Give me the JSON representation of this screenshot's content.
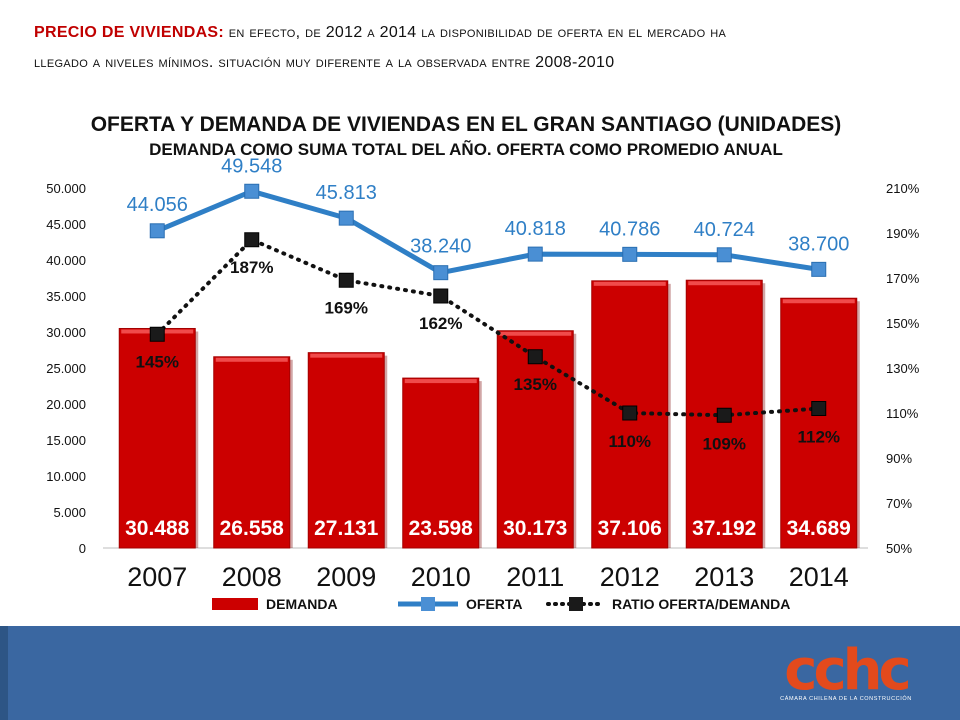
{
  "header": {
    "title_accent": "PRECIO DE VIVIENDAS:",
    "line1_rest": "en efecto, de 2012 a 2014 la disponibilidad de oferta en el mercado ha",
    "line2": "llegado a niveles mínimos. situación muy diferente a la observada entre 2008-2010"
  },
  "chart_data": {
    "type": "bar+line",
    "title": "OFERTA Y DEMANDA DE VIVIENDAS EN EL GRAN SANTIAGO (UNIDADES)",
    "subtitle": "DEMANDA COMO SUMA TOTAL DEL AÑO. OFERTA COMO PROMEDIO ANUAL",
    "categories": [
      "2007",
      "2008",
      "2009",
      "2010",
      "2011",
      "2012",
      "2013",
      "2014"
    ],
    "series": [
      {
        "name": "DEMANDA",
        "kind": "bar",
        "axis": "left",
        "color": "#cc0000",
        "values": [
          30488,
          26558,
          27131,
          23598,
          30173,
          37106,
          37192,
          34689
        ],
        "labels": [
          "30.488",
          "26.558",
          "27.131",
          "23.598",
          "30.173",
          "37.106",
          "37.192",
          "34.689"
        ]
      },
      {
        "name": "OFERTA",
        "kind": "line",
        "axis": "left",
        "color": "#2f7fc6",
        "values": [
          44056,
          49548,
          45813,
          38240,
          40818,
          40786,
          40724,
          38700
        ],
        "labels": [
          "44.056",
          "49.548",
          "45.813",
          "38.240",
          "40.818",
          "40.786",
          "40.724",
          "38.700"
        ]
      },
      {
        "name": "RATIO OFERTA/DEMANDA",
        "kind": "dotted-line",
        "axis": "right",
        "color": "#111111",
        "values": [
          145,
          187,
          169,
          162,
          135,
          110,
          109,
          112
        ],
        "labels": [
          "145%",
          "187%",
          "169%",
          "162%",
          "135%",
          "110%",
          "109%",
          "112%"
        ]
      }
    ],
    "y_left": {
      "min": 0,
      "max": 50000,
      "ticks": [
        "0",
        "5.000",
        "10.000",
        "15.000",
        "20.000",
        "25.000",
        "30.000",
        "35.000",
        "40.000",
        "45.000",
        "50.000"
      ]
    },
    "y_right": {
      "min": 50,
      "max": 210,
      "ticks": [
        "50%",
        "70%",
        "90%",
        "110%",
        "130%",
        "150%",
        "170%",
        "190%",
        "210%"
      ]
    },
    "legend": [
      "DEMANDA",
      "OFERTA",
      "RATIO OFERTA/DEMANDA"
    ],
    "legend_position": "bottom"
  },
  "footer": {
    "logo_mark": "cchc",
    "logo_caption": "CÁMARA CHILENA DE LA CONSTRUCCIÓN"
  }
}
